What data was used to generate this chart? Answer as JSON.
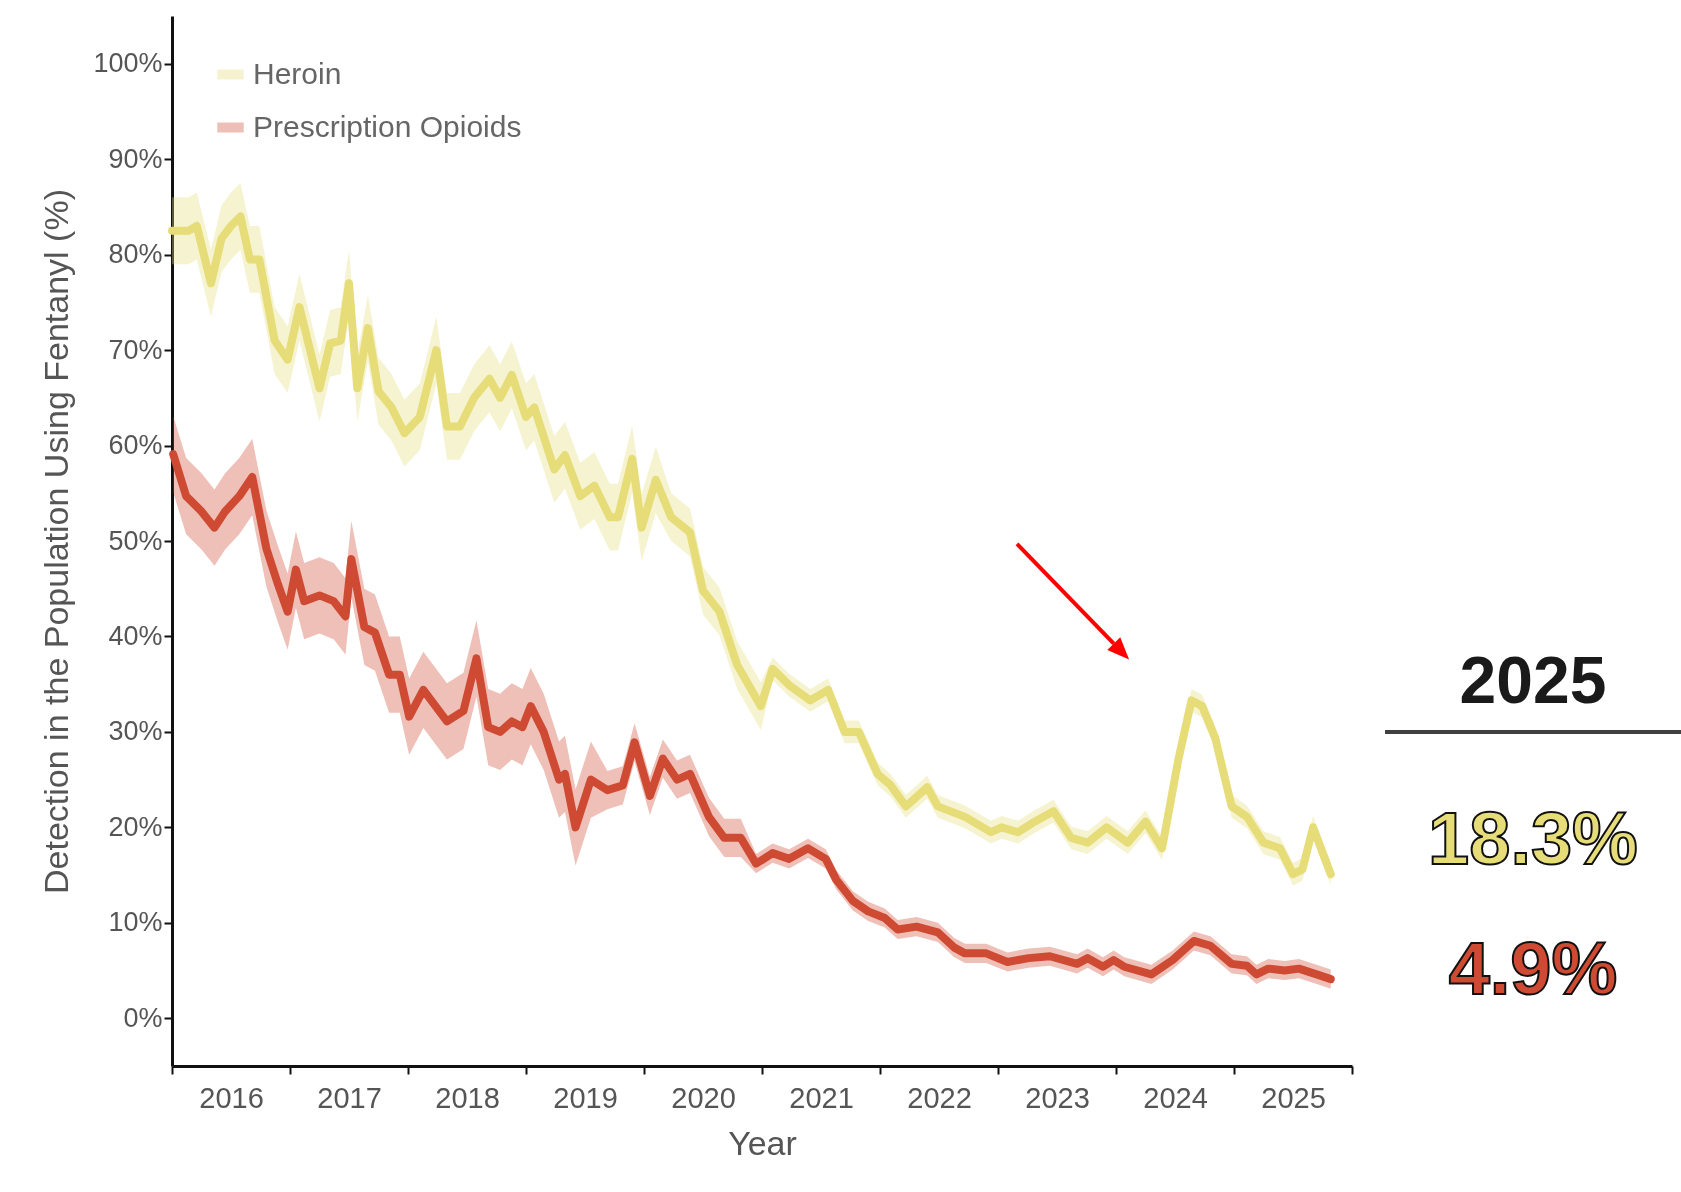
{
  "chart_data": {
    "type": "line",
    "xlabel": "Year",
    "ylabel": "Detection in the Population Using Fentanyl (%)",
    "xlim": [
      2016,
      2026
    ],
    "xticks": [
      {
        "value": 2016,
        "label": null
      },
      {
        "value": 2016.5,
        "label": "2016"
      },
      {
        "value": 2017,
        "label": null
      },
      {
        "value": 2017.5,
        "label": "2017"
      },
      {
        "value": 2018,
        "label": null
      },
      {
        "value": 2018.5,
        "label": "2018"
      },
      {
        "value": 2019,
        "label": null
      },
      {
        "value": 2019.5,
        "label": "2019"
      },
      {
        "value": 2020,
        "label": null
      },
      {
        "value": 2020.5,
        "label": "2020"
      },
      {
        "value": 2021,
        "label": null
      },
      {
        "value": 2021.5,
        "label": "2021"
      },
      {
        "value": 2022,
        "label": null
      },
      {
        "value": 2022.5,
        "label": "2022"
      },
      {
        "value": 2023,
        "label": null
      },
      {
        "value": 2023.5,
        "label": "2023"
      },
      {
        "value": 2024,
        "label": null
      },
      {
        "value": 2024.5,
        "label": "2024"
      },
      {
        "value": 2025,
        "label": null
      },
      {
        "value": 2025.5,
        "label": "2025"
      },
      {
        "value": 2026,
        "label": null
      }
    ],
    "ylim": [
      -5,
      105
    ],
    "yticks": [
      {
        "value": 0,
        "label": "0%"
      },
      {
        "value": 10,
        "label": "10%"
      },
      {
        "value": 20,
        "label": "20%"
      },
      {
        "value": 30,
        "label": "30%"
      },
      {
        "value": 40,
        "label": "40%"
      },
      {
        "value": 50,
        "label": "50%"
      },
      {
        "value": 60,
        "label": "60%"
      },
      {
        "value": 70,
        "label": "70%"
      },
      {
        "value": 80,
        "label": "80%"
      },
      {
        "value": 90,
        "label": "90%"
      },
      {
        "value": 100,
        "label": "100%"
      }
    ],
    "legend": "top left",
    "annotations": [
      "2025",
      "18.3%",
      "4.9%"
    ],
    "series": [
      {
        "name": "Heroin",
        "color": "#e6dc78",
        "x": [
          2016.0,
          2016.14,
          2016.21,
          2016.33,
          2016.42,
          2016.5,
          2016.58,
          2016.66,
          2016.74,
          2016.87,
          2016.98,
          2017.08,
          2017.25,
          2017.34,
          2017.43,
          2017.5,
          2017.57,
          2017.66,
          2017.75,
          2017.86,
          2017.97,
          2018.1,
          2018.24,
          2018.33,
          2018.44,
          2018.56,
          2018.69,
          2018.78,
          2018.88,
          2019.0,
          2019.07,
          2019.24,
          2019.33,
          2019.46,
          2019.58,
          2019.71,
          2019.78,
          2019.9,
          2019.98,
          2020.1,
          2020.23,
          2020.39,
          2020.5,
          2020.64,
          2020.79,
          2020.99,
          2021.09,
          2021.23,
          2021.41,
          2021.56,
          2021.7,
          2021.82,
          2021.98,
          2022.09,
          2022.22,
          2022.4,
          2022.49,
          2022.72,
          2022.94,
          2023.03,
          2023.17,
          2023.31,
          2023.47,
          2023.62,
          2023.76,
          2023.92,
          2024.1,
          2024.25,
          2024.39,
          2024.53,
          2024.64,
          2024.73,
          2024.84,
          2024.98,
          2025.11,
          2025.25,
          2025.39,
          2025.5,
          2025.58,
          2025.67,
          2025.82
        ],
        "values": [
          82.5,
          82.5,
          83,
          77,
          81.7,
          83,
          84,
          79.5,
          79.5,
          71,
          69,
          74.5,
          66,
          70.7,
          71,
          77,
          66,
          72.3,
          65.7,
          64,
          61.3,
          63,
          70,
          62,
          62,
          65,
          67,
          65,
          67.4,
          63,
          64,
          57.5,
          59,
          54.7,
          55.8,
          52.5,
          52.5,
          58.6,
          51.4,
          56.4,
          52.5,
          50.9,
          44.8,
          42.6,
          37,
          32.7,
          36.6,
          34.9,
          33.3,
          34.4,
          30,
          30,
          25.6,
          24.4,
          22.2,
          24.2,
          22.2,
          21.1,
          19.5,
          20,
          19.5,
          20.6,
          21.7,
          18.9,
          18.4,
          20,
          18.4,
          20.6,
          17.8,
          27.2,
          33.3,
          32.7,
          29.4,
          22.2,
          21.1,
          18.4,
          17.8,
          15.1,
          15.6,
          20,
          15.1
        ],
        "lower": [
          79,
          79,
          79.5,
          73.5,
          78.2,
          79.5,
          80.5,
          76,
          76,
          67.5,
          65.5,
          71,
          62.5,
          67.2,
          67.5,
          73.5,
          62.5,
          68.8,
          62.2,
          60.5,
          57.8,
          59.5,
          66.5,
          58.5,
          58.5,
          61.5,
          63.5,
          61.5,
          63.9,
          59.5,
          60.5,
          54,
          55.5,
          51.2,
          52.3,
          49,
          49,
          55.1,
          47.9,
          52.9,
          50,
          48.4,
          42.3,
          40.1,
          34.5,
          30.2,
          35.4,
          33.7,
          32.1,
          33.2,
          28.8,
          28.8,
          24.4,
          23.2,
          21,
          23,
          21,
          19.9,
          18.3,
          18.8,
          18.3,
          19.4,
          20.5,
          17.7,
          17.2,
          18.8,
          17.2,
          19.4,
          16.6,
          26,
          32.1,
          31.5,
          28.2,
          21,
          19.9,
          17.2,
          16.6,
          13.9,
          14.4,
          18.8,
          13.9
        ],
        "upper": [
          86,
          86,
          86.5,
          80.5,
          85.2,
          86.5,
          87.5,
          83,
          83,
          74.5,
          72.5,
          78,
          69.5,
          74.2,
          74.5,
          80.5,
          69.5,
          75.8,
          69.2,
          67.5,
          64.8,
          66.5,
          73.5,
          65.5,
          65.5,
          68.5,
          70.5,
          68.5,
          70.9,
          66.5,
          67.5,
          61,
          62.5,
          58.2,
          59.3,
          56,
          56,
          62.1,
          54.9,
          59.9,
          55,
          53.4,
          47.3,
          45.1,
          39.5,
          35.2,
          37.8,
          36.1,
          34.5,
          35.6,
          31.2,
          31.2,
          26.8,
          25.6,
          23.4,
          25.4,
          23.4,
          22.3,
          20.7,
          21.2,
          20.7,
          21.8,
          22.9,
          20.1,
          19.6,
          21.2,
          19.6,
          21.8,
          19,
          28.4,
          34.5,
          33.9,
          30.6,
          23.4,
          22.3,
          19.6,
          19,
          16.3,
          16.8,
          21.2,
          16.3
        ]
      },
      {
        "name": "Prescription Opioids",
        "color": "#cf4a33",
        "x": [
          2016.01,
          2016.12,
          2016.25,
          2016.36,
          2016.45,
          2016.57,
          2016.68,
          2016.8,
          2016.9,
          2016.98,
          2017.05,
          2017.12,
          2017.25,
          2017.37,
          2017.47,
          2017.52,
          2017.63,
          2017.72,
          2017.84,
          2017.93,
          2018.01,
          2018.13,
          2018.33,
          2018.47,
          2018.58,
          2018.68,
          2018.78,
          2018.88,
          2018.97,
          2019.04,
          2019.15,
          2019.28,
          2019.33,
          2019.42,
          2019.55,
          2019.69,
          2019.82,
          2019.92,
          2020.05,
          2020.16,
          2020.28,
          2020.39,
          2020.55,
          2020.68,
          2020.82,
          2020.95,
          2021.09,
          2021.23,
          2021.39,
          2021.54,
          2021.63,
          2021.77,
          2021.9,
          2022.04,
          2022.15,
          2022.31,
          2022.49,
          2022.63,
          2022.72,
          2022.9,
          2023.08,
          2023.26,
          2023.44,
          2023.67,
          2023.76,
          2023.89,
          2023.98,
          2024.07,
          2024.3,
          2024.48,
          2024.66,
          2024.8,
          2024.98,
          2025.11,
          2025.19,
          2025.29,
          2025.43,
          2025.55,
          2025.7,
          2025.82
        ],
        "values": [
          59.1,
          54.7,
          53.1,
          51.4,
          53.1,
          54.7,
          56.7,
          49.2,
          45.4,
          42.6,
          47,
          43.7,
          44.3,
          43.7,
          42.1,
          48.1,
          41,
          40.4,
          36,
          36,
          31.6,
          34.4,
          31.1,
          32.2,
          37.7,
          30.5,
          30,
          31.1,
          30.5,
          32.7,
          30,
          25,
          25.6,
          20,
          25,
          23.9,
          24.4,
          28.9,
          23.3,
          27.2,
          25,
          25.6,
          21.1,
          18.9,
          18.9,
          16.2,
          17.3,
          16.7,
          17.8,
          16.7,
          14.5,
          12.3,
          11.2,
          10.5,
          9.3,
          9.6,
          9,
          7.4,
          6.8,
          6.8,
          5.9,
          6.3,
          6.5,
          5.7,
          6.3,
          5.4,
          6.1,
          5.4,
          4.6,
          6.1,
          8.1,
          7.6,
          5.7,
          5.5,
          4.6,
          5.2,
          5,
          5.2,
          4.6,
          4.1
        ],
        "lower": [
          55.1,
          50.7,
          49.1,
          47.4,
          49.1,
          50.7,
          52.7,
          45.2,
          41.4,
          38.6,
          43,
          39.7,
          40.3,
          39.7,
          38.1,
          44.1,
          37,
          36.4,
          32,
          32,
          27.6,
          30.4,
          27.1,
          28.2,
          33.7,
          26.5,
          26,
          27.1,
          26.5,
          28.7,
          26,
          21,
          21.6,
          16,
          21,
          21.9,
          22.4,
          26.9,
          21.3,
          25.2,
          23,
          23.6,
          19.1,
          16.9,
          16.9,
          15.2,
          16.3,
          15.7,
          16.8,
          15.7,
          13.5,
          11.3,
          10.2,
          9.5,
          8.3,
          8.6,
          8,
          6.4,
          5.8,
          5.8,
          4.9,
          5.3,
          5.5,
          4.7,
          5.3,
          4.4,
          5.1,
          4.4,
          3.6,
          5.1,
          7.1,
          6.6,
          4.7,
          4.5,
          3.6,
          4.2,
          4,
          4.2,
          3.6,
          3.1
        ],
        "upper": [
          63.1,
          58.7,
          57.1,
          55.4,
          57.1,
          58.7,
          60.7,
          53.2,
          49.4,
          46.6,
          51,
          47.7,
          48.3,
          47.7,
          46.1,
          52.1,
          45,
          44.4,
          40,
          40,
          35.6,
          38.4,
          35.1,
          36.2,
          41.7,
          34.5,
          34,
          35.1,
          34.5,
          36.7,
          34,
          29,
          29.6,
          24,
          29,
          25.9,
          26.4,
          30.9,
          25.3,
          29.2,
          27,
          27.6,
          23.1,
          20.9,
          20.9,
          17.2,
          18.3,
          17.7,
          18.8,
          17.7,
          15.5,
          13.3,
          12.2,
          11.5,
          10.3,
          10.6,
          10,
          8.4,
          7.8,
          7.8,
          6.9,
          7.3,
          7.5,
          6.7,
          7.3,
          6.4,
          7.1,
          6.4,
          5.6,
          7.1,
          9.1,
          8.6,
          6.7,
          6.5,
          5.6,
          6.2,
          6,
          6.2,
          5.6,
          5.1
        ]
      }
    ]
  }
}
